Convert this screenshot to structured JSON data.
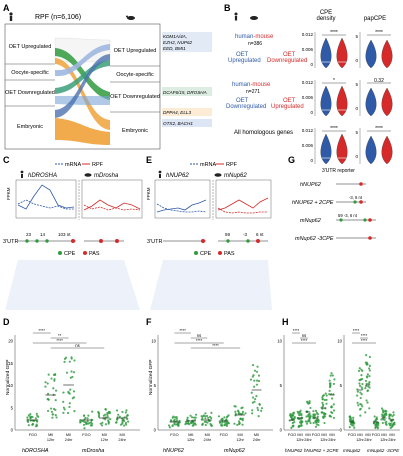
{
  "colors": {
    "blue": "#2f5aa8",
    "red": "#d62a2a",
    "green": "#2f9a3e",
    "orange": "#f0a23a",
    "lightblue": "#9fb7df",
    "teal": "#3a9f7a"
  },
  "panelA": {
    "letter": "A",
    "title": "RPF (n=6,106)",
    "left_groups": [
      "OET Upregulated",
      "Oocyte-specific",
      "OET Downregulated",
      "Embryonic"
    ],
    "right_groups": [
      "OET Upregulated",
      "Oocyte-specific",
      "OET Downregulated",
      "Embryonic"
    ],
    "gene_labels": [
      "KDM1A/4A, EZH2, NUP62 EED, BMI1",
      "DCAF6/15, DROSHA",
      "DPPA4, ELL3",
      "OTX2, BACH1"
    ]
  },
  "panelB": {
    "letter": "B",
    "col1": "CPE density",
    "col2": "papCPE",
    "rows": [
      {
        "title_a": "human",
        "title_b": "-mouse",
        "n": "n=386",
        "left": "OET Upregulated",
        "right": "OET Downregulated",
        "sig1": "****",
        "sig2": "****"
      },
      {
        "title_a": "human",
        "title_b": "-mouse",
        "n": "n=271",
        "left": "OET Downregulated",
        "right": "OET Upregulated",
        "sig1": "*",
        "sig2": "0.32"
      },
      {
        "title_a": "All homologous genes",
        "title_b": "",
        "n": "",
        "left": "",
        "right": "",
        "sig1": "****",
        "sig2": "****"
      }
    ],
    "yticks1": [
      "0.012",
      "0.006",
      "0"
    ],
    "yticks2": [
      "5",
      "0"
    ]
  },
  "panelC": {
    "letter": "C",
    "legend_mrna": "mRNA",
    "legend_rpf": "RPF",
    "gene_h": "hDROSHA",
    "gene_m": "mDrosha",
    "ylabel": "FPKM",
    "utr": "3'UTR",
    "utr_nums": [
      "23",
      "14",
      "103 nt"
    ],
    "legend_cpe": "CPE",
    "legend_pas": "PAS"
  },
  "panelD": {
    "letter": "D",
    "ylabel": "Normalized GFP",
    "groups": [
      "FGO",
      "MII 12hr",
      "MII 24hr",
      "FGO",
      "MII 12hr",
      "MII 24hr"
    ],
    "genes": [
      "hDROSHA",
      "mDrosha"
    ],
    "sigs": [
      "****",
      "**",
      "****",
      "ns"
    ],
    "yticks": [
      "20",
      "15",
      "10",
      "5",
      "0"
    ]
  },
  "panelE": {
    "letter": "E",
    "legend_mrna": "mRNA",
    "legend_rpf": "RPF",
    "gene_h": "hNUP62",
    "gene_m": "mNup62",
    "ylabel": "FPKM",
    "utr": "3'UTR",
    "utr_nums": [
      "59",
      "-3",
      "6 nt"
    ],
    "legend_cpe": "CPE",
    "legend_pas": "PAS"
  },
  "panelF": {
    "letter": "F",
    "ylabel": "Normalized GFP",
    "groups": [
      "FGO",
      "MII 12hr",
      "MII 24hr",
      "FGO",
      "MII 12hr",
      "MII 24hr"
    ],
    "genes": [
      "hNUP62",
      "mNup62"
    ],
    "sigs": [
      "****",
      "ns",
      "****",
      "****"
    ],
    "yticks": [
      "10",
      "5",
      "0"
    ]
  },
  "panelG": {
    "letter": "G",
    "title": "3'UTR reporter",
    "rows": [
      {
        "name": "hNUP62",
        "note": ""
      },
      {
        "name": "hNUP62 + 2CPE",
        "note": "-3, 6 nt"
      },
      {
        "name": "mNup62",
        "note": "59    -3, 6 nt"
      },
      {
        "name": "mNup62 -3CPE",
        "note": ""
      }
    ]
  },
  "panelH": {
    "letter": "H",
    "groups": [
      "FGO",
      "MII 12hr",
      "MII 24hr"
    ],
    "genes": [
      "hNUP62",
      "hNUP62 + 2CPE",
      "mNup62",
      "mNup62 -3CPE"
    ],
    "sigs": [
      "****",
      "ns",
      "****",
      "****",
      "****",
      "****"
    ],
    "yticks": [
      "10",
      "5",
      "0"
    ]
  }
}
